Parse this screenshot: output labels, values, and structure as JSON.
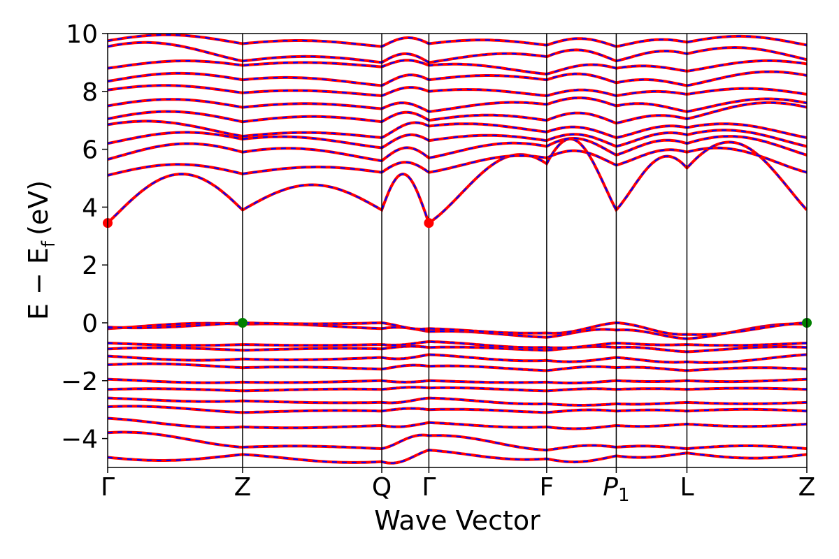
{
  "chart_data": {
    "type": "line",
    "title": "",
    "xlabel": "Wave Vector",
    "ylabel": "E − E_f (eV)",
    "ylabel_parts": {
      "main": "E − E",
      "sub": "f",
      "unit": "(eV)"
    },
    "ylim": [
      -5,
      10
    ],
    "yticks": [
      -4,
      -2,
      0,
      2,
      4,
      6,
      8,
      10
    ],
    "ytick_labels": [
      "−4",
      "−2",
      "0",
      "2",
      "4",
      "6",
      "8",
      "10"
    ],
    "xlim": [
      0,
      6.53
    ],
    "kpath": [
      {
        "label": "Γ",
        "x": 0.0
      },
      {
        "label": "Z",
        "x": 1.26
      },
      {
        "label": "Q",
        "x": 2.56
      },
      {
        "label": "Γ",
        "x": 3.0
      },
      {
        "label": "F",
        "x": 4.1
      },
      {
        "label": "P",
        "sub": "1",
        "italic": true,
        "x": 4.75
      },
      {
        "label": "L",
        "x": 5.41
      },
      {
        "label": "Z",
        "x": 6.53
      }
    ],
    "band_energies_at_kpoints": [
      [
        -4.65,
        -4.55,
        -4.8,
        -4.4,
        -4.7,
        -4.6,
        -4.5,
        -4.55
      ],
      [
        -3.8,
        -4.3,
        -4.35,
        -3.9,
        -4.4,
        -4.3,
        -4.35,
        -4.35
      ],
      [
        -3.3,
        -3.6,
        -3.55,
        -3.45,
        -3.6,
        -3.55,
        -3.5,
        -3.5
      ],
      [
        -2.9,
        -3.1,
        -3.05,
        -3.0,
        -3.1,
        -3.05,
        -3.05,
        -3.05
      ],
      [
        -2.6,
        -2.7,
        -2.75,
        -2.6,
        -2.8,
        -2.8,
        -2.75,
        -2.75
      ],
      [
        -2.3,
        -2.35,
        -2.3,
        -2.25,
        -2.35,
        -2.3,
        -2.3,
        -2.3
      ],
      [
        -1.95,
        -2.05,
        -2.0,
        -2.0,
        -2.05,
        -2.0,
        -2.0,
        -1.95
      ],
      [
        -1.45,
        -1.55,
        -1.6,
        -1.5,
        -1.65,
        -1.55,
        -1.65,
        -1.6
      ],
      [
        -1.15,
        -1.25,
        -1.2,
        -1.1,
        -1.3,
        -1.2,
        -1.35,
        -1.1
      ],
      [
        -0.9,
        -0.95,
        -0.9,
        -0.85,
        -0.95,
        -0.85,
        -1.0,
        -0.85
      ],
      [
        -0.7,
        -0.75,
        -0.75,
        -0.65,
        -0.85,
        -0.7,
        -0.75,
        -0.7
      ],
      [
        -0.2,
        -0.05,
        -0.2,
        -0.3,
        -0.5,
        -0.25,
        -0.55,
        -0.05
      ],
      [
        -0.15,
        0.0,
        0.0,
        -0.2,
        -0.35,
        0.0,
        -0.4,
        0.0
      ],
      [
        3.45,
        3.9,
        3.9,
        3.45,
        5.5,
        3.9,
        5.35,
        3.9
      ],
      [
        5.1,
        5.15,
        5.2,
        5.2,
        5.7,
        5.45,
        5.9,
        5.2
      ],
      [
        5.65,
        5.9,
        5.6,
        5.7,
        6.1,
        5.8,
        6.2,
        5.8
      ],
      [
        6.2,
        6.35,
        6.05,
        6.3,
        6.3,
        6.1,
        6.5,
        6.1
      ],
      [
        6.85,
        6.45,
        6.4,
        6.8,
        6.6,
        6.4,
        6.75,
        6.4
      ],
      [
        7.05,
        6.95,
        6.95,
        7.0,
        7.0,
        6.9,
        7.05,
        7.45
      ],
      [
        7.5,
        7.45,
        7.4,
        7.3,
        7.55,
        7.5,
        7.3,
        7.6
      ],
      [
        8.05,
        7.95,
        7.85,
        8.0,
        7.85,
        7.85,
        7.9,
        7.9
      ],
      [
        8.35,
        8.4,
        8.2,
        8.4,
        8.4,
        8.3,
        8.2,
        8.55
      ],
      [
        8.8,
        8.9,
        8.85,
        8.9,
        8.6,
        8.8,
        8.7,
        8.95
      ],
      [
        9.55,
        9.05,
        9.0,
        9.0,
        9.2,
        9.05,
        9.3,
        9.1
      ],
      [
        9.75,
        9.65,
        9.55,
        9.65,
        9.6,
        9.55,
        9.7,
        9.6
      ]
    ],
    "band_wiggle": [
      0.15,
      0.1,
      0.08,
      0.06,
      0.05,
      0.04,
      0.05,
      0.07,
      0.08,
      0.06,
      0.05,
      0.08,
      0.06,
      1.45,
      0.35,
      0.4,
      0.3,
      0.25,
      0.3,
      0.25,
      0.2,
      0.25,
      0.2,
      0.3,
      0.25
    ],
    "series": [
      {
        "color": "#ff0000",
        "style": "solid"
      },
      {
        "color": "#0000ff",
        "style": "dashed"
      }
    ],
    "markers": [
      {
        "kind": "CBM",
        "x": 0.0,
        "y": 3.45,
        "color": "#ff0000"
      },
      {
        "kind": "CBM",
        "x": 3.0,
        "y": 3.45,
        "color": "#ff0000"
      },
      {
        "kind": "VBM",
        "x": 1.26,
        "y": 0.0,
        "color": "#008000"
      },
      {
        "kind": "VBM",
        "x": 6.53,
        "y": 0.0,
        "color": "#008000"
      }
    ],
    "grid": false,
    "legend": "none"
  }
}
